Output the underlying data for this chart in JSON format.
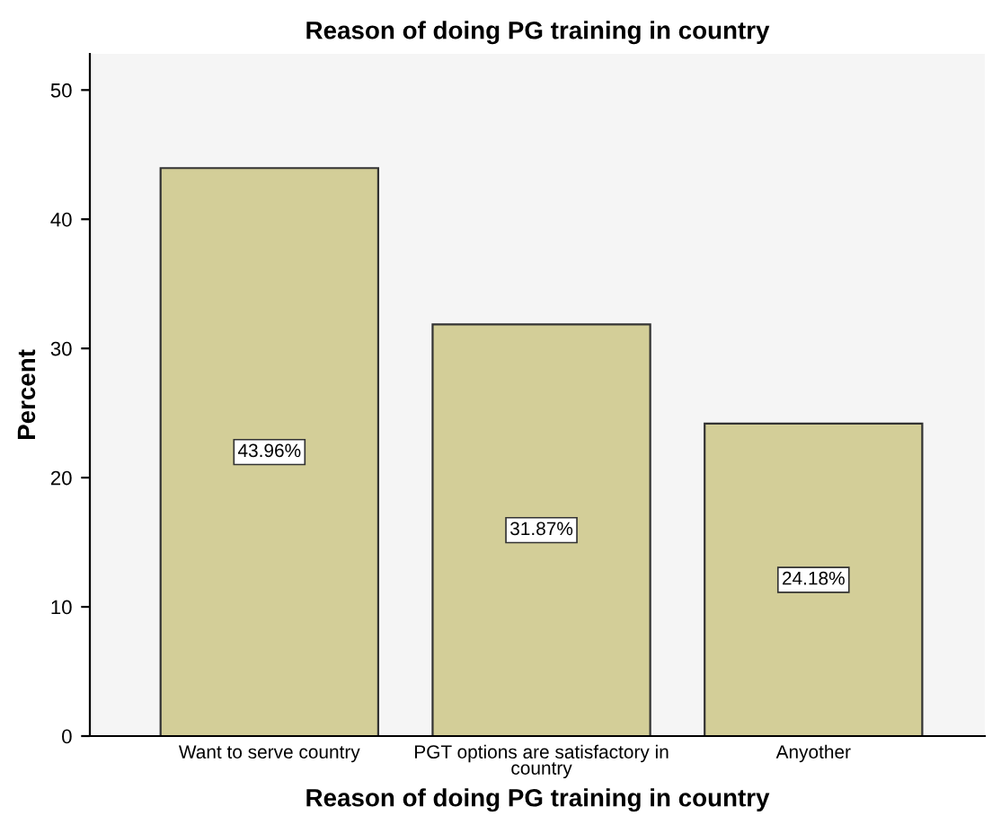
{
  "chart_data": {
    "type": "bar",
    "title": "Reason of doing PG training in country",
    "xlabel": "Reason of doing PG training in country",
    "ylabel": "Percent",
    "categories": [
      "Want to serve country",
      "PGT options are satisfactory in country",
      "Anyother"
    ],
    "values": [
      43.96,
      31.87,
      24.18
    ],
    "value_labels": [
      "43.96%",
      "31.87%",
      "24.18%"
    ],
    "color": "#d3ce98",
    "ylim": [
      0,
      52.8
    ],
    "yticks": [
      0,
      10,
      20,
      30,
      40,
      50
    ],
    "grid": false
  }
}
